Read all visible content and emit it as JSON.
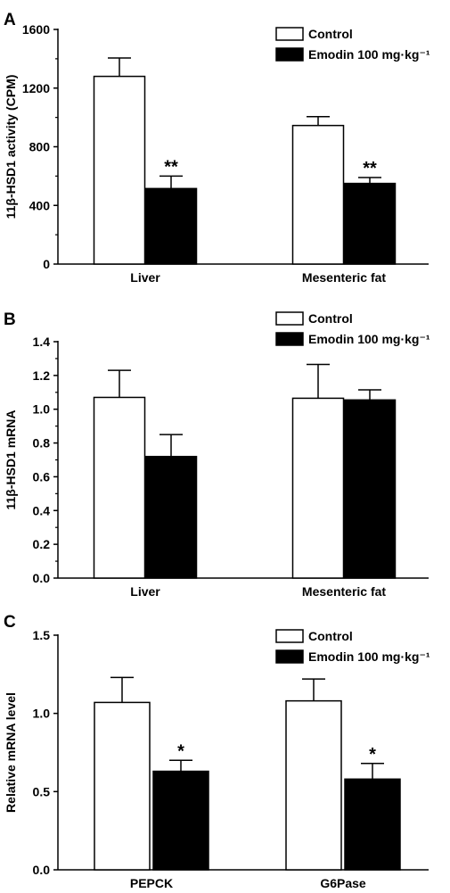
{
  "chart_data": [
    {
      "panel": "A",
      "type": "bar",
      "ylabel": "11β-HSD1 activity (CPM)",
      "ylim": [
        0,
        1600
      ],
      "yticks": [
        0,
        400,
        800,
        1200,
        1600
      ],
      "categories": [
        "Liver",
        "Mesenteric fat"
      ],
      "series": [
        {
          "name": "Control",
          "fill": "#ffffff",
          "values": [
            1280,
            945
          ],
          "errors": [
            125,
            60
          ],
          "marks": [
            "",
            ""
          ]
        },
        {
          "name": "Emodin 100 mg·kg⁻¹",
          "fill": "#000000",
          "values": [
            515,
            550
          ],
          "errors": [
            85,
            40
          ],
          "marks": [
            "**",
            "**"
          ]
        }
      ],
      "legend": "top-right"
    },
    {
      "panel": "B",
      "type": "bar",
      "ylabel": "11β-HSD1 mRNA",
      "ylim": [
        0,
        1.4
      ],
      "yticks": [
        "0.0",
        "0.2",
        "0.4",
        "0.6",
        "0.8",
        "1.0",
        "1.2",
        "1.4"
      ],
      "categories": [
        "Liver",
        "Mesenteric fat"
      ],
      "series": [
        {
          "name": "Control",
          "fill": "#ffffff",
          "values": [
            1.07,
            1.065
          ],
          "errors": [
            0.16,
            0.2
          ],
          "marks": [
            "",
            ""
          ]
        },
        {
          "name": "Emodin 100 mg·kg⁻¹",
          "fill": "#000000",
          "values": [
            0.72,
            1.055
          ],
          "errors": [
            0.13,
            0.06
          ],
          "marks": [
            "",
            ""
          ]
        }
      ],
      "legend": "top-right"
    },
    {
      "panel": "C",
      "type": "bar",
      "ylabel": "Relative mRNA level",
      "ylim": [
        0,
        1.5
      ],
      "yticks": [
        "0.0",
        "0.5",
        "1.0",
        "1.5"
      ],
      "categories": [
        "PEPCK",
        "G6Pase"
      ],
      "series": [
        {
          "name": "Control",
          "fill": "#ffffff",
          "values": [
            1.07,
            1.08
          ],
          "errors": [
            0.16,
            0.14
          ],
          "marks": [
            "",
            ""
          ]
        },
        {
          "name": "Emodin 100 mg·kg⁻¹",
          "fill": "#000000",
          "values": [
            0.63,
            0.58
          ],
          "errors": [
            0.07,
            0.1
          ],
          "marks": [
            "*",
            "*"
          ]
        }
      ],
      "legend": "top-right"
    }
  ]
}
